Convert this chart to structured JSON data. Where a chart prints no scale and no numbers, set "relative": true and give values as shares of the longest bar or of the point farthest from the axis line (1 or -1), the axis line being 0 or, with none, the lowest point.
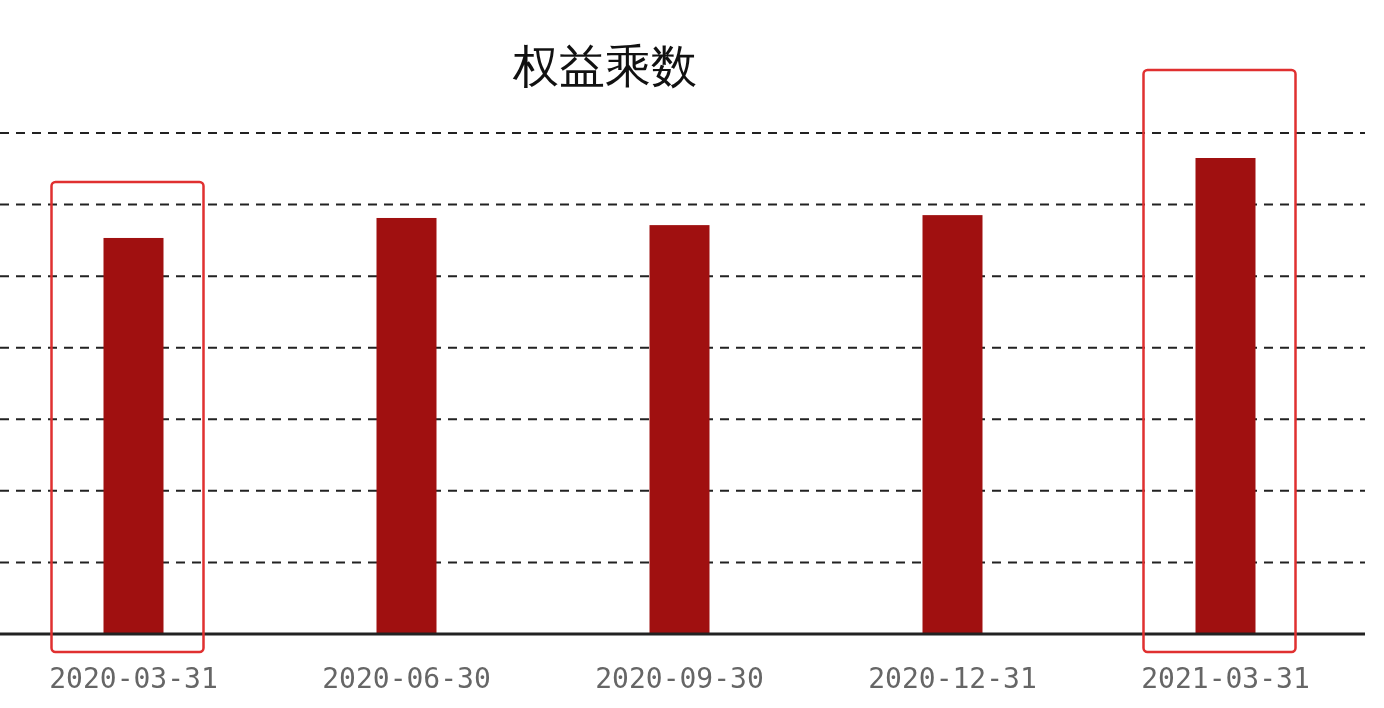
{
  "chart_data": {
    "type": "bar",
    "title": "权益乘数",
    "relative": true,
    "grid": "y",
    "categories": [
      "2020-03-31",
      "2020-06-30",
      "2020-09-30",
      "2020-12-31",
      "2021-03-31"
    ],
    "values": [
      0.832,
      0.874,
      0.859,
      0.88,
      1
    ],
    "color": "#a01010"
  }
}
